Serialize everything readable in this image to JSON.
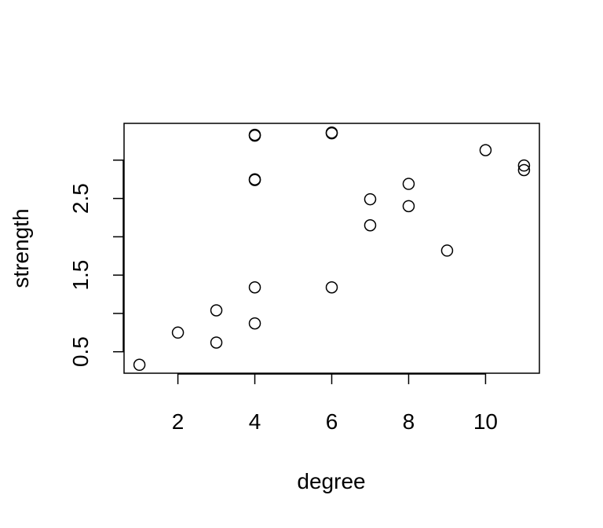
{
  "chart_data": {
    "type": "scatter",
    "title": "",
    "xlabel": "degree",
    "ylabel": "strength",
    "xlim": [
      0.6,
      11.4
    ],
    "ylim": [
      0.22,
      3.48
    ],
    "x_ticks": [
      2,
      4,
      6,
      8,
      10
    ],
    "y_ticks": [
      0.5,
      1.0,
      1.5,
      2.0,
      2.5,
      3.0
    ],
    "y_tick_labels": [
      "0.5",
      "",
      "1.5",
      "",
      "2.5",
      ""
    ],
    "grid": false,
    "legend": "none",
    "points": [
      {
        "x": 1,
        "y": 0.33
      },
      {
        "x": 2,
        "y": 0.75
      },
      {
        "x": 3,
        "y": 0.62
      },
      {
        "x": 3,
        "y": 1.04
      },
      {
        "x": 4,
        "y": 0.87
      },
      {
        "x": 4,
        "y": 1.34
      },
      {
        "x": 4,
        "y": 2.75
      },
      {
        "x": 4,
        "y": 2.74
      },
      {
        "x": 4,
        "y": 3.33
      },
      {
        "x": 4,
        "y": 3.32
      },
      {
        "x": 6,
        "y": 1.34
      },
      {
        "x": 6,
        "y": 3.36
      },
      {
        "x": 6,
        "y": 3.35
      },
      {
        "x": 7,
        "y": 2.15
      },
      {
        "x": 7,
        "y": 2.49
      },
      {
        "x": 8,
        "y": 2.4
      },
      {
        "x": 8,
        "y": 2.69
      },
      {
        "x": 9,
        "y": 1.82
      },
      {
        "x": 10,
        "y": 3.13
      },
      {
        "x": 11,
        "y": 2.93
      },
      {
        "x": 11,
        "y": 2.87
      }
    ]
  }
}
